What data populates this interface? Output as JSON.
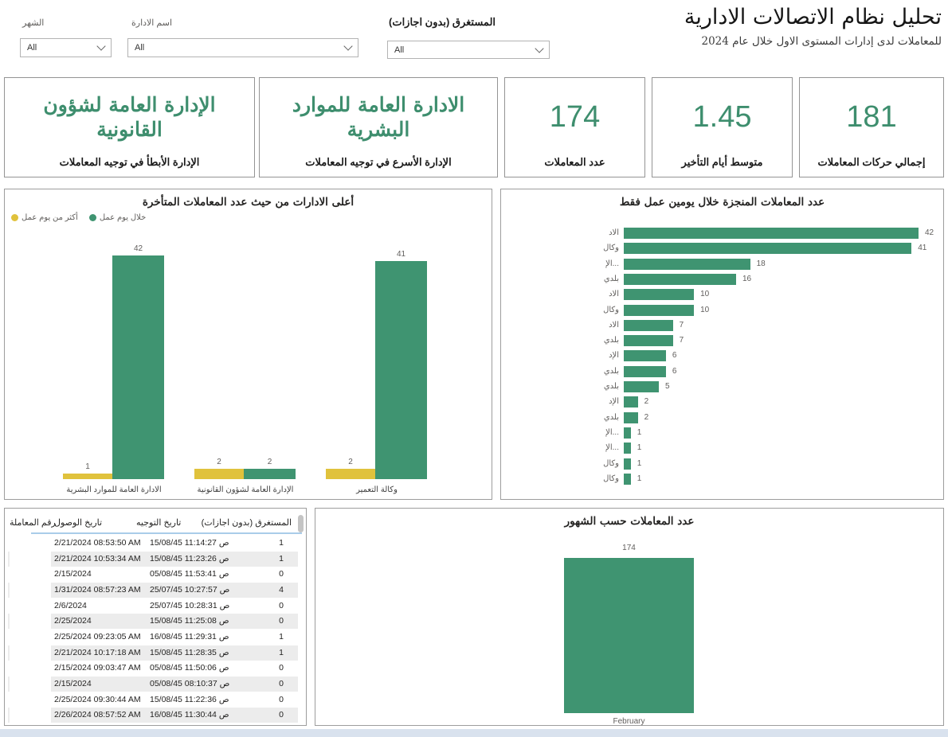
{
  "header": {
    "title": "تحليل نظام الاتصالات الادارية",
    "subtitle": "للمعاملات لدى إدارات المستوى الاول خلال عام 2024",
    "filters": [
      {
        "label": "الشهر",
        "value": "All"
      },
      {
        "label": "اسم الادارة",
        "value": "All"
      },
      {
        "label": "المستغرق (بدون اجازات)",
        "value": "All"
      }
    ]
  },
  "kpi_cards": [
    {
      "value": "الإدارة العامة لشؤون القانونية",
      "label": "الإدارة الأبطأ في توجيه المعاملات"
    },
    {
      "value": "الادارة العامة للموارد البشرية",
      "label": "الإدارة الأسرع في توجيه المعاملات"
    },
    {
      "value": "174",
      "label": "عدد المعاملات"
    },
    {
      "value": "1.45",
      "label": "متوسط أيام التأخير"
    },
    {
      "value": "181",
      "label": "إجمالي حركات المعاملات"
    }
  ],
  "colors": {
    "green": "#3f9471",
    "yellow": "#e0c23c",
    "kpi_text": "#3e8e6e"
  },
  "chart_data": [
    {
      "type": "bar",
      "title": "أعلى الادارات من حيث عدد المعاملات المتأخرة",
      "legend": [
        {
          "name": "خلال يوم عمل",
          "color": "#3f9471"
        },
        {
          "name": "أكثر من يوم عمل",
          "color": "#e0c23c"
        }
      ],
      "legend_position": "top",
      "categories": [
        "الادارة العامة للموارد البشرية",
        "الإدارة العامة لشؤون القانونية",
        "وكالة التعمير"
      ],
      "series": [
        {
          "name": "أكثر من يوم عمل",
          "color": "#e0c23c",
          "values": [
            1,
            2,
            2
          ]
        },
        {
          "name": "خلال يوم عمل",
          "color": "#3f9471",
          "values": [
            42,
            2,
            41
          ]
        }
      ],
      "ylim": [
        0,
        42
      ],
      "grid": false
    },
    {
      "type": "bar-horizontal",
      "title": "عدد المعاملات المنجزة خلال يومين عمل فقط",
      "categories": [
        "الاد",
        "وكال",
        "...الإ",
        "بلدي",
        "الاد",
        "وكال",
        "الاد",
        "بلدي",
        "الإد",
        "بلدي",
        "بلدي",
        "الإد",
        "بلدي",
        "...الإ",
        "...الإ",
        "وكال",
        "وكال"
      ],
      "values": [
        42,
        41,
        18,
        16,
        10,
        10,
        7,
        7,
        6,
        6,
        5,
        2,
        2,
        1,
        1,
        1,
        1
      ],
      "xlim": [
        0,
        42
      ],
      "grid": false
    },
    {
      "type": "bar",
      "title": "عدد المعاملات حسب الشهور",
      "categories": [
        "February"
      ],
      "values": [
        174
      ],
      "ylim": [
        0,
        174
      ],
      "grid": false
    }
  ],
  "table": {
    "headers": [
      "رقم المعاملة",
      "تاريخ الوصول",
      "تاريخ التوجيه",
      "المستغرق (بدون اجازات)"
    ],
    "rows": [
      {
        "id": "",
        "arrival": "2/21/2024 08:53:50 AM",
        "routing": "15/08/45 11:14:27 ص",
        "duration": "1"
      },
      {
        "id": "",
        "arrival": "2/21/2024 10:53:34 AM",
        "routing": "15/08/45 11:23:26 ص",
        "duration": "1"
      },
      {
        "id": "",
        "arrival": "2/15/2024",
        "routing": "05/08/45 11:53:41 ص",
        "duration": "0"
      },
      {
        "id": "",
        "arrival": "1/31/2024 08:57:23 AM",
        "routing": "25/07/45 10:27:57 ص",
        "duration": "4"
      },
      {
        "id": "",
        "arrival": "2/6/2024",
        "routing": "25/07/45 10:28:31 ص",
        "duration": "0"
      },
      {
        "id": "",
        "arrival": "2/25/2024",
        "routing": "15/08/45 11:25:08 ص",
        "duration": "0"
      },
      {
        "id": "",
        "arrival": "2/25/2024 09:23:05 AM",
        "routing": "16/08/45 11:29:31 ص",
        "duration": "1"
      },
      {
        "id": "",
        "arrival": "2/21/2024 10:17:18 AM",
        "routing": "15/08/45 11:28:35 ص",
        "duration": "1"
      },
      {
        "id": "",
        "arrival": "2/15/2024 09:03:47 AM",
        "routing": "05/08/45 11:50:06 ص",
        "duration": "0"
      },
      {
        "id": "",
        "arrival": "2/15/2024",
        "routing": "05/08/45 08:10:37 ص",
        "duration": "0"
      },
      {
        "id": "",
        "arrival": "2/25/2024 09:30:44 AM",
        "routing": "15/08/45 11:22:36 ص",
        "duration": "0"
      },
      {
        "id": "",
        "arrival": "2/26/2024 08:57:52 AM",
        "routing": "16/08/45 11:30:44 ص",
        "duration": "0"
      }
    ]
  }
}
